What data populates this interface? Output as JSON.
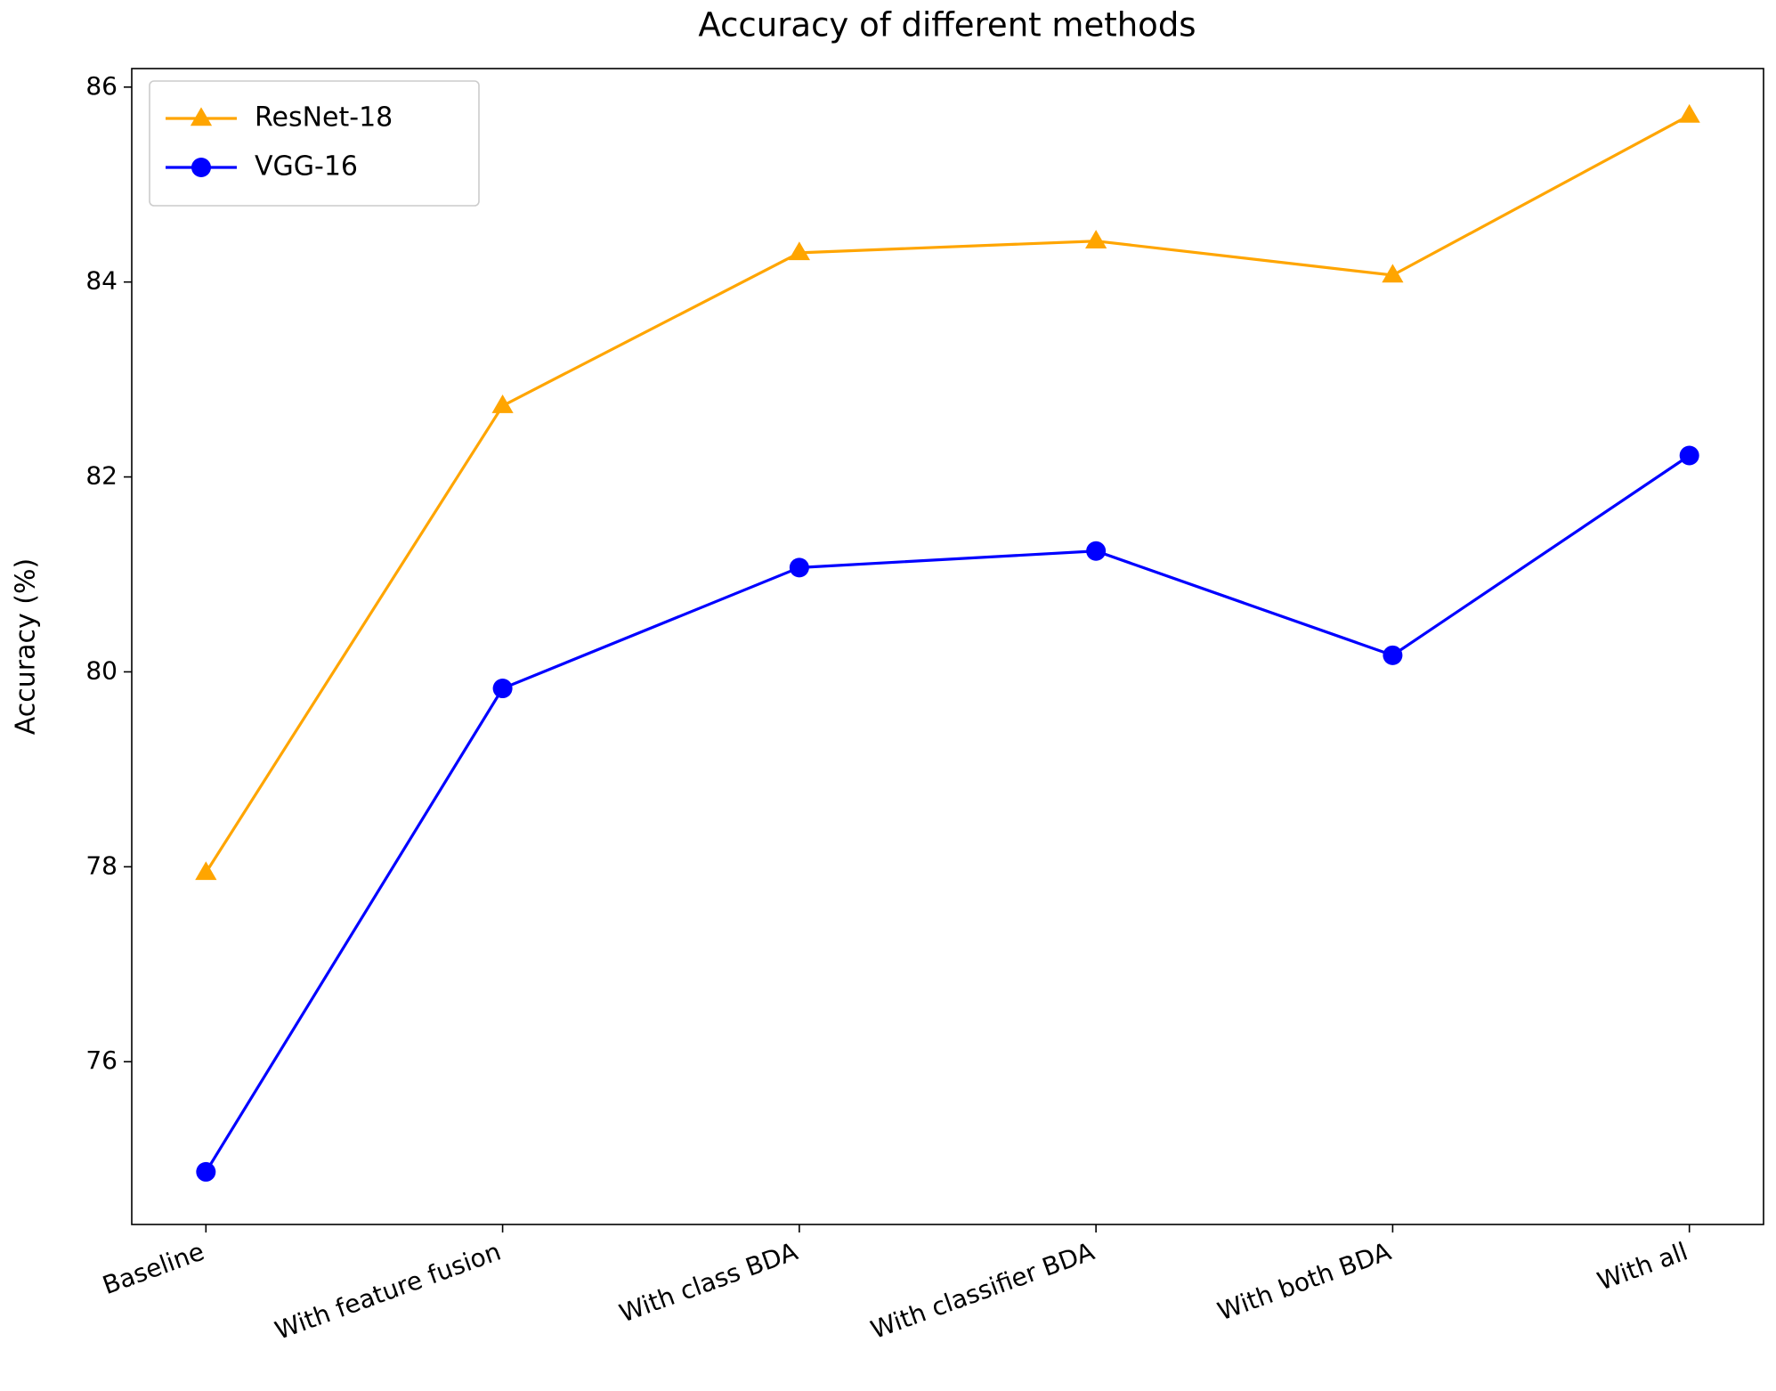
{
  "chart_data": {
    "type": "line",
    "title": "Accuracy of different methods",
    "y_label": "Accuracy (%)",
    "categories": [
      "Baseline",
      "With feature fusion",
      "With class BDA",
      "With classifier BDA",
      "With both BDA",
      "With all"
    ],
    "series": [
      {
        "name": "ResNet-18",
        "color": "#ffa500",
        "marker": "triangle",
        "values": [
          77.94,
          82.73,
          84.3,
          84.42,
          84.07,
          85.71
        ]
      },
      {
        "name": "VGG-16",
        "color": "#0000ff",
        "marker": "circle",
        "values": [
          74.87,
          79.83,
          81.07,
          81.24,
          80.17,
          82.22
        ]
      }
    ],
    "ylim": [
      74.33,
      86.19
    ],
    "yticks": [
      76,
      78,
      80,
      82,
      84,
      86
    ],
    "grid": false,
    "legend": "upper left"
  }
}
